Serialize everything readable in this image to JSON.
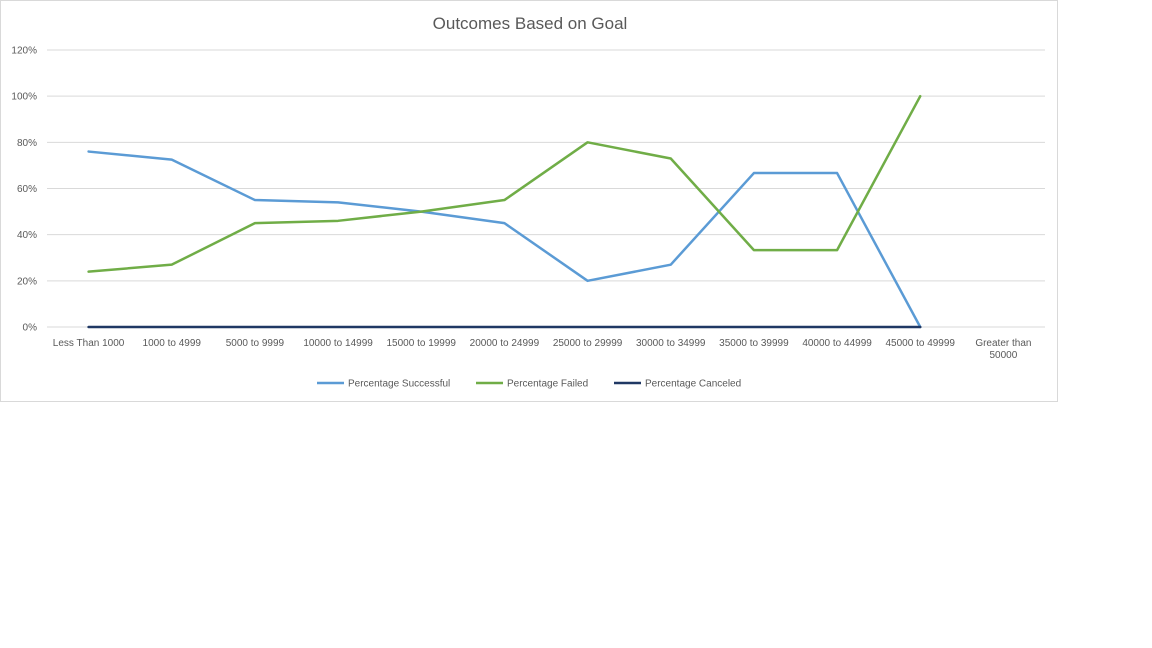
{
  "chart_data": {
    "type": "line",
    "title": "Outcomes Based on Goal",
    "xlabel": "",
    "ylabel": "",
    "categories": [
      [
        "Less Than 1000"
      ],
      [
        "1000 to 4999"
      ],
      [
        "5000 to 9999"
      ],
      [
        "10000 to 14999"
      ],
      [
        "15000 to 19999"
      ],
      [
        "20000 to 24999"
      ],
      [
        "25000 to 29999"
      ],
      [
        "30000 to 34999"
      ],
      [
        "35000 to 39999"
      ],
      [
        "40000 to 44999"
      ],
      [
        "45000 to 49999"
      ],
      [
        "Greater than",
        "50000"
      ]
    ],
    "ylim": [
      0,
      1.2
    ],
    "yticks": [
      {
        "value": 0,
        "label": "0%"
      },
      {
        "value": 0.2,
        "label": "20%"
      },
      {
        "value": 0.4,
        "label": "40%"
      },
      {
        "value": 0.6,
        "label": "60%"
      },
      {
        "value": 0.8,
        "label": "80%"
      },
      {
        "value": 1.0,
        "label": "100%"
      },
      {
        "value": 1.2,
        "label": "120%"
      }
    ],
    "grid": true,
    "legend_position": "bottom",
    "series": [
      {
        "name": "Percentage Successful",
        "color": "#5b9bd5",
        "values": [
          0.76,
          0.725,
          0.55,
          0.54,
          0.5,
          0.45,
          0.2,
          0.27,
          0.667,
          0.667,
          0.0,
          null
        ]
      },
      {
        "name": "Percentage Failed",
        "color": "#70ad47",
        "values": [
          0.24,
          0.27,
          0.45,
          0.46,
          0.5,
          0.55,
          0.8,
          0.73,
          0.333,
          0.333,
          1.0,
          null
        ]
      },
      {
        "name": "Percentage Canceled",
        "color": "#203864",
        "values": [
          0,
          0,
          0,
          0,
          0,
          0,
          0,
          0,
          0,
          0,
          0,
          null
        ]
      }
    ]
  }
}
